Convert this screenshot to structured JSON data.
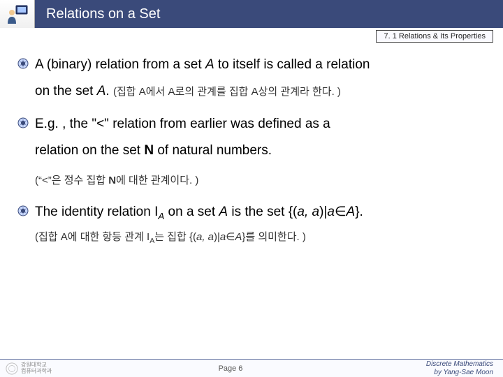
{
  "header": {
    "title": "Relations on a Set",
    "subtitle": "7. 1 Relations & Its Properties"
  },
  "bullets": [
    {
      "line1_parts": [
        "A (binary) relation from a set ",
        "A",
        " to itself is called a relation"
      ],
      "line2_parts": [
        "on the set ",
        "A",
        ".  "
      ],
      "korean": "(집합 A에서 A로의 관계를 집합 A상의 관계라 한다. )"
    },
    {
      "line1_parts": [
        "E.g. , the \"<\" relation from earlier was defined as a"
      ],
      "line2_parts": [
        "relation on the set ",
        "N",
        " of natural numbers."
      ],
      "korean_full": "(\"<\"은 정수 집합 N에 대한 관계이다. )"
    },
    {
      "line1_html": "The identity relation I<span class='sub italic'>A</span> on a set <span class='italic'>A</span> is the set {(<span class='italic'>a, a</span>)|<span class='italic'>a</span>∈<span class='italic'>A</span>}.",
      "korean_html": "(집합 A에 대한 항등 관계 I<span class='sub'>A</span>는 집합 {(<span class='italic'>a, a</span>)|<span class='italic'>a</span>∈<span class='italic'>A</span>}를 의미한다. )"
    }
  ],
  "footer": {
    "logo_text": "강원대학교\n컴퓨터과학과",
    "page": "Page 6",
    "credit1": "Discrete Mathematics",
    "credit2": "by Yang-Sae Moon"
  },
  "colors": {
    "titlebar": "#3a4a7a",
    "border": "#5a6a9a"
  }
}
